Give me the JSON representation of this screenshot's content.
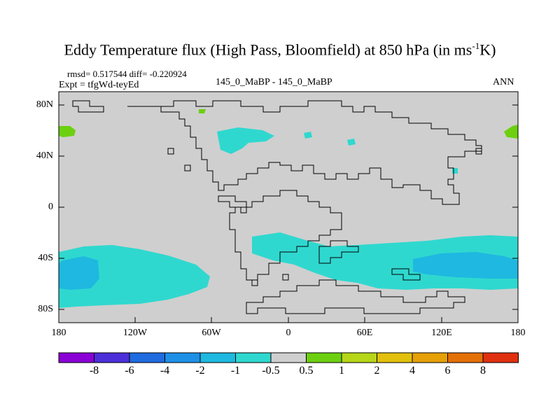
{
  "title": {
    "main": "Eddy Temperature flux (High Pass, Bloomfield) at 850 hPa (in ms",
    "sup": "-1",
    "tail": "K)"
  },
  "stats": {
    "rmsd_diff": "rmsd= 0.517544 diff= -0.220924",
    "expt": "Expt = tfgWd-teyEd",
    "comparison": "145_0_MaBP - 145_0_MaBP",
    "period": "ANN"
  },
  "axes": {
    "lat_labels": [
      "80N",
      "40N",
      "0",
      "40S",
      "80S"
    ],
    "lon_labels": [
      "180",
      "120W",
      "60W",
      "0",
      "60E",
      "120E",
      "180"
    ]
  },
  "colorbar": {
    "colors": [
      "#8a00d6",
      "#4c2fd9",
      "#1f6be0",
      "#1e90e6",
      "#1fb8e0",
      "#2fd8cf",
      "#cfcfcf",
      "#6cd010",
      "#b6d618",
      "#e2c00c",
      "#e6a008",
      "#e47008",
      "#e03010"
    ],
    "labels": [
      "-8",
      "-6",
      "-4",
      "-2",
      "-1",
      "-0.5",
      "0.5",
      "1",
      "2",
      "4",
      "6",
      "8"
    ]
  },
  "map": {
    "background": "#cfcfcf",
    "cyan": "#2fd8cf",
    "blue": "#1fb8e0",
    "green": "#6cd010"
  }
}
